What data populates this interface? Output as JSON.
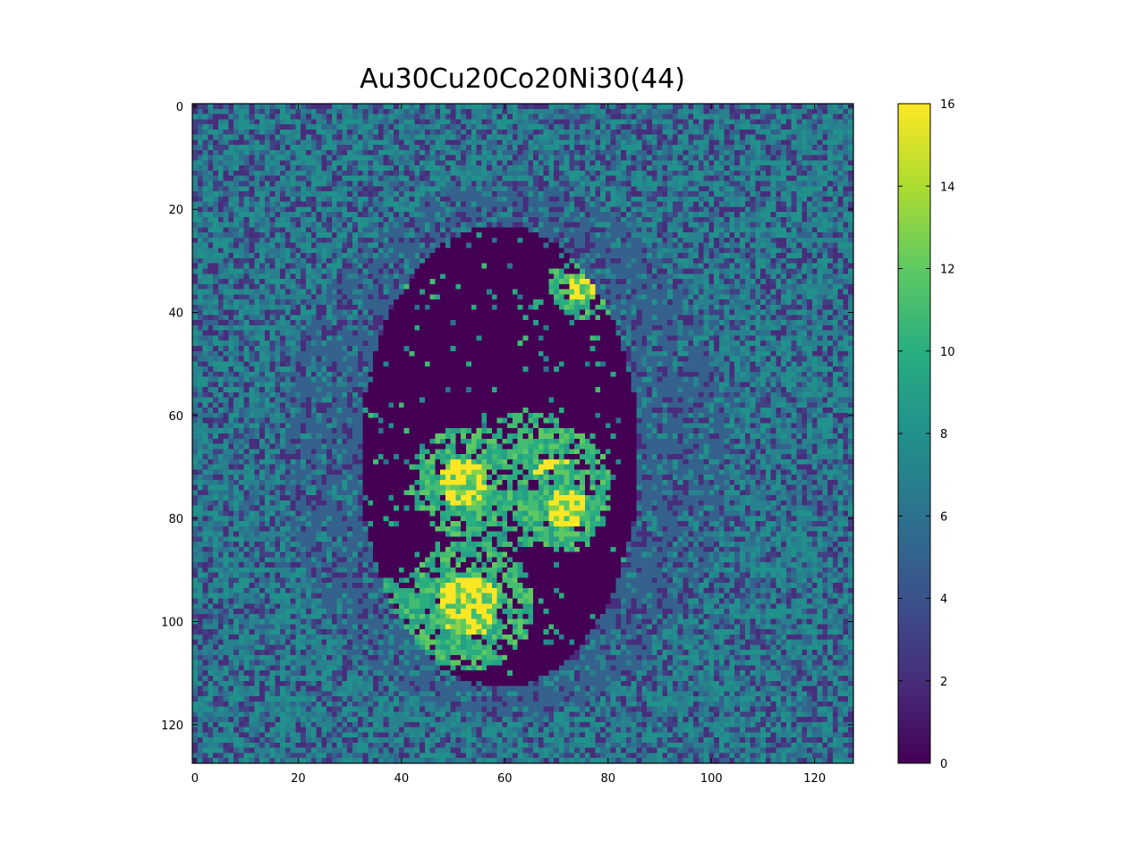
{
  "chart_data": {
    "type": "heatmap",
    "title": "Au30Cu20Co20Ni30(44)",
    "xlabel": "",
    "ylabel": "",
    "grid": false,
    "colormap": "viridis",
    "image_shape": [
      128,
      128
    ],
    "xlim": [
      0,
      127
    ],
    "ylim": [
      127,
      0
    ],
    "x_ticks": [
      0,
      20,
      40,
      60,
      80,
      100,
      120
    ],
    "y_ticks": [
      0,
      20,
      40,
      60,
      80,
      100,
      120
    ],
    "colorbar": {
      "range": [
        0,
        16
      ],
      "ticks": [
        0,
        2,
        4,
        6,
        8,
        10,
        12,
        14,
        16
      ]
    },
    "regions": [
      {
        "description": "background",
        "value_range": [
          2,
          9
        ]
      },
      {
        "description": "halo ring around particle",
        "center": [
          60,
          67
        ],
        "approx_value": 5
      },
      {
        "description": "particle core",
        "value_range": [
          0,
          0
        ]
      },
      {
        "description": "high-value clusters",
        "centers": [
          [
            52,
            73
          ],
          [
            70,
            73
          ],
          [
            53,
            97
          ],
          [
            72,
            78
          ]
        ],
        "approx_value": 16
      }
    ]
  }
}
